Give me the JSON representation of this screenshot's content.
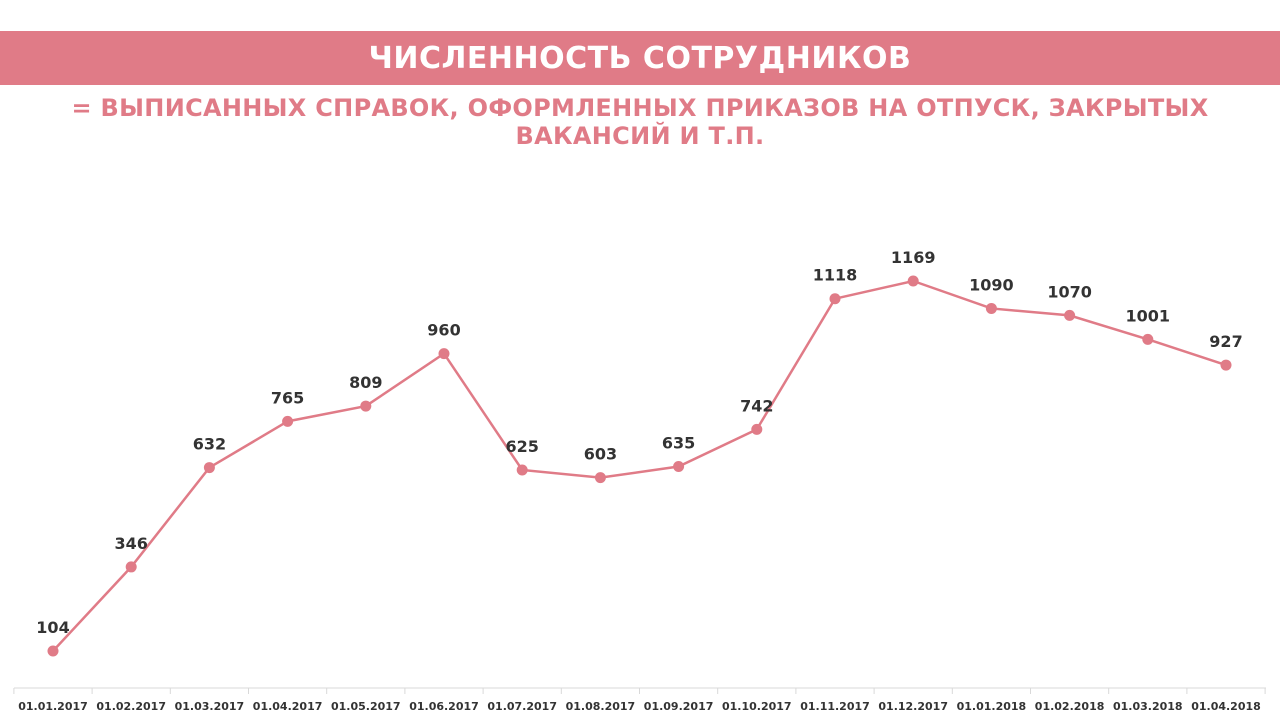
{
  "header": {
    "title": "ЧИСЛЕННОСТЬ СОТРУДНИКОВ",
    "subtitle": "= ВЫПИСАННЫХ СПРАВОК, ОФОРМЛЕННЫХ ПРИКАЗОВ НА ОТПУСК, ЗАКРЫТЫХ ВАКАНСИЙ И Т.П."
  },
  "colors": {
    "accent": "#e07b87",
    "axis": "#d9d9d9",
    "label": "#333333"
  },
  "chart_data": {
    "type": "line",
    "title": "ЧИСЛЕННОСТЬ СОТРУДНИКОВ",
    "subtitle": "= ВЫПИСАННЫХ СПРАВОК, ОФОРМЛЕННЫХ ПРИКАЗОВ НА ОТПУСК, ЗАКРЫТЫХ ВАКАНСИЙ И Т.П.",
    "categories": [
      "01.01.2017",
      "01.02.2017",
      "01.03.2017",
      "01.04.2017",
      "01.05.2017",
      "01.06.2017",
      "01.07.2017",
      "01.08.2017",
      "01.09.2017",
      "01.10.2017",
      "01.11.2017",
      "01.12.2017",
      "01.01.2018",
      "01.02.2018",
      "01.03.2018",
      "01.04.2018"
    ],
    "values": [
      104,
      346,
      632,
      765,
      809,
      960,
      625,
      603,
      635,
      742,
      1118,
      1169,
      1090,
      1070,
      1001,
      927
    ],
    "grid": false,
    "legend": "none",
    "data_labels": true
  }
}
